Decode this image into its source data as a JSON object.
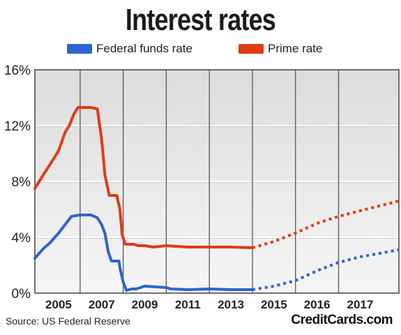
{
  "chart_data": {
    "type": "line",
    "title": "Interest rates",
    "xlabel": "",
    "ylabel": "",
    "ylim": [
      0,
      16
    ],
    "y_ticks": [
      "0%",
      "4%",
      "8%",
      "12%",
      "16%"
    ],
    "x_tick_labels": [
      {
        "label": "2005",
        "x": 2005
      },
      {
        "label": "2007",
        "x": 2007
      },
      {
        "label": "2009",
        "x": 2009
      },
      {
        "label": "2011",
        "x": 2011
      },
      {
        "label": "2013",
        "x": 2013
      },
      {
        "label": "2015",
        "x": 2015
      },
      {
        "label": "2016",
        "x": 2017
      },
      {
        "label": "2017",
        "x": 2019
      }
    ],
    "xlim": [
      2003.9,
      2020.8
    ],
    "grid": true,
    "legend_placement": "top",
    "series": [
      {
        "name": "Federal funds rate",
        "color": "#2f63cf",
        "historical": [
          [
            2003.9,
            2.5
          ],
          [
            2004.3,
            3.2
          ],
          [
            2004.6,
            3.6
          ],
          [
            2005.0,
            4.3
          ],
          [
            2005.3,
            4.9
          ],
          [
            2005.6,
            5.5
          ],
          [
            2006.0,
            5.6
          ],
          [
            2006.5,
            5.6
          ],
          [
            2006.8,
            5.4
          ],
          [
            2007.0,
            4.9
          ],
          [
            2007.15,
            4.3
          ],
          [
            2007.3,
            3.0
          ],
          [
            2007.45,
            2.3
          ],
          [
            2007.8,
            2.3
          ],
          [
            2007.85,
            1.8
          ],
          [
            2008.0,
            0.8
          ],
          [
            2008.15,
            0.2
          ],
          [
            2008.4,
            0.3
          ],
          [
            2008.6,
            0.3
          ],
          [
            2009.0,
            0.5
          ],
          [
            2010.0,
            0.4
          ],
          [
            2010.2,
            0.3
          ],
          [
            2011.0,
            0.25
          ],
          [
            2012.0,
            0.3
          ],
          [
            2013.0,
            0.25
          ],
          [
            2014.0,
            0.25
          ]
        ],
        "forecast": [
          [
            2014.0,
            0.25
          ],
          [
            2015.0,
            0.5
          ],
          [
            2016.0,
            0.9
          ],
          [
            2017.0,
            1.6
          ],
          [
            2018.0,
            2.2
          ],
          [
            2019.0,
            2.6
          ],
          [
            2020.8,
            3.1
          ]
        ]
      },
      {
        "name": "Prime rate",
        "color": "#e03a12",
        "historical": [
          [
            2003.9,
            7.5
          ],
          [
            2004.3,
            8.5
          ],
          [
            2004.6,
            9.2
          ],
          [
            2005.0,
            10.2
          ],
          [
            2005.3,
            11.5
          ],
          [
            2005.5,
            12.0
          ],
          [
            2005.7,
            12.8
          ],
          [
            2005.9,
            13.3
          ],
          [
            2006.5,
            13.3
          ],
          [
            2006.8,
            13.2
          ],
          [
            2007.0,
            11.0
          ],
          [
            2007.15,
            8.5
          ],
          [
            2007.35,
            7.0
          ],
          [
            2007.7,
            7.0
          ],
          [
            2007.85,
            6.0
          ],
          [
            2007.95,
            4.2
          ],
          [
            2008.1,
            3.5
          ],
          [
            2008.5,
            3.5
          ],
          [
            2008.7,
            3.4
          ],
          [
            2009.0,
            3.4
          ],
          [
            2009.4,
            3.3
          ],
          [
            2010.0,
            3.4
          ],
          [
            2011.0,
            3.3
          ],
          [
            2012.0,
            3.3
          ],
          [
            2013.0,
            3.3
          ],
          [
            2014.0,
            3.25
          ]
        ],
        "forecast": [
          [
            2014.0,
            3.25
          ],
          [
            2015.0,
            3.7
          ],
          [
            2016.0,
            4.3
          ],
          [
            2017.0,
            5.0
          ],
          [
            2018.0,
            5.5
          ],
          [
            2019.0,
            5.9
          ],
          [
            2020.8,
            6.6
          ]
        ]
      }
    ]
  },
  "legend": {
    "federal_label": "Federal funds rate",
    "federal_color": "#2f63cf",
    "prime_label": "Prime rate",
    "prime_color": "#e03a12"
  },
  "footer": {
    "source": "Source: US Federal Reserve",
    "brand": "CreditCards.com"
  }
}
